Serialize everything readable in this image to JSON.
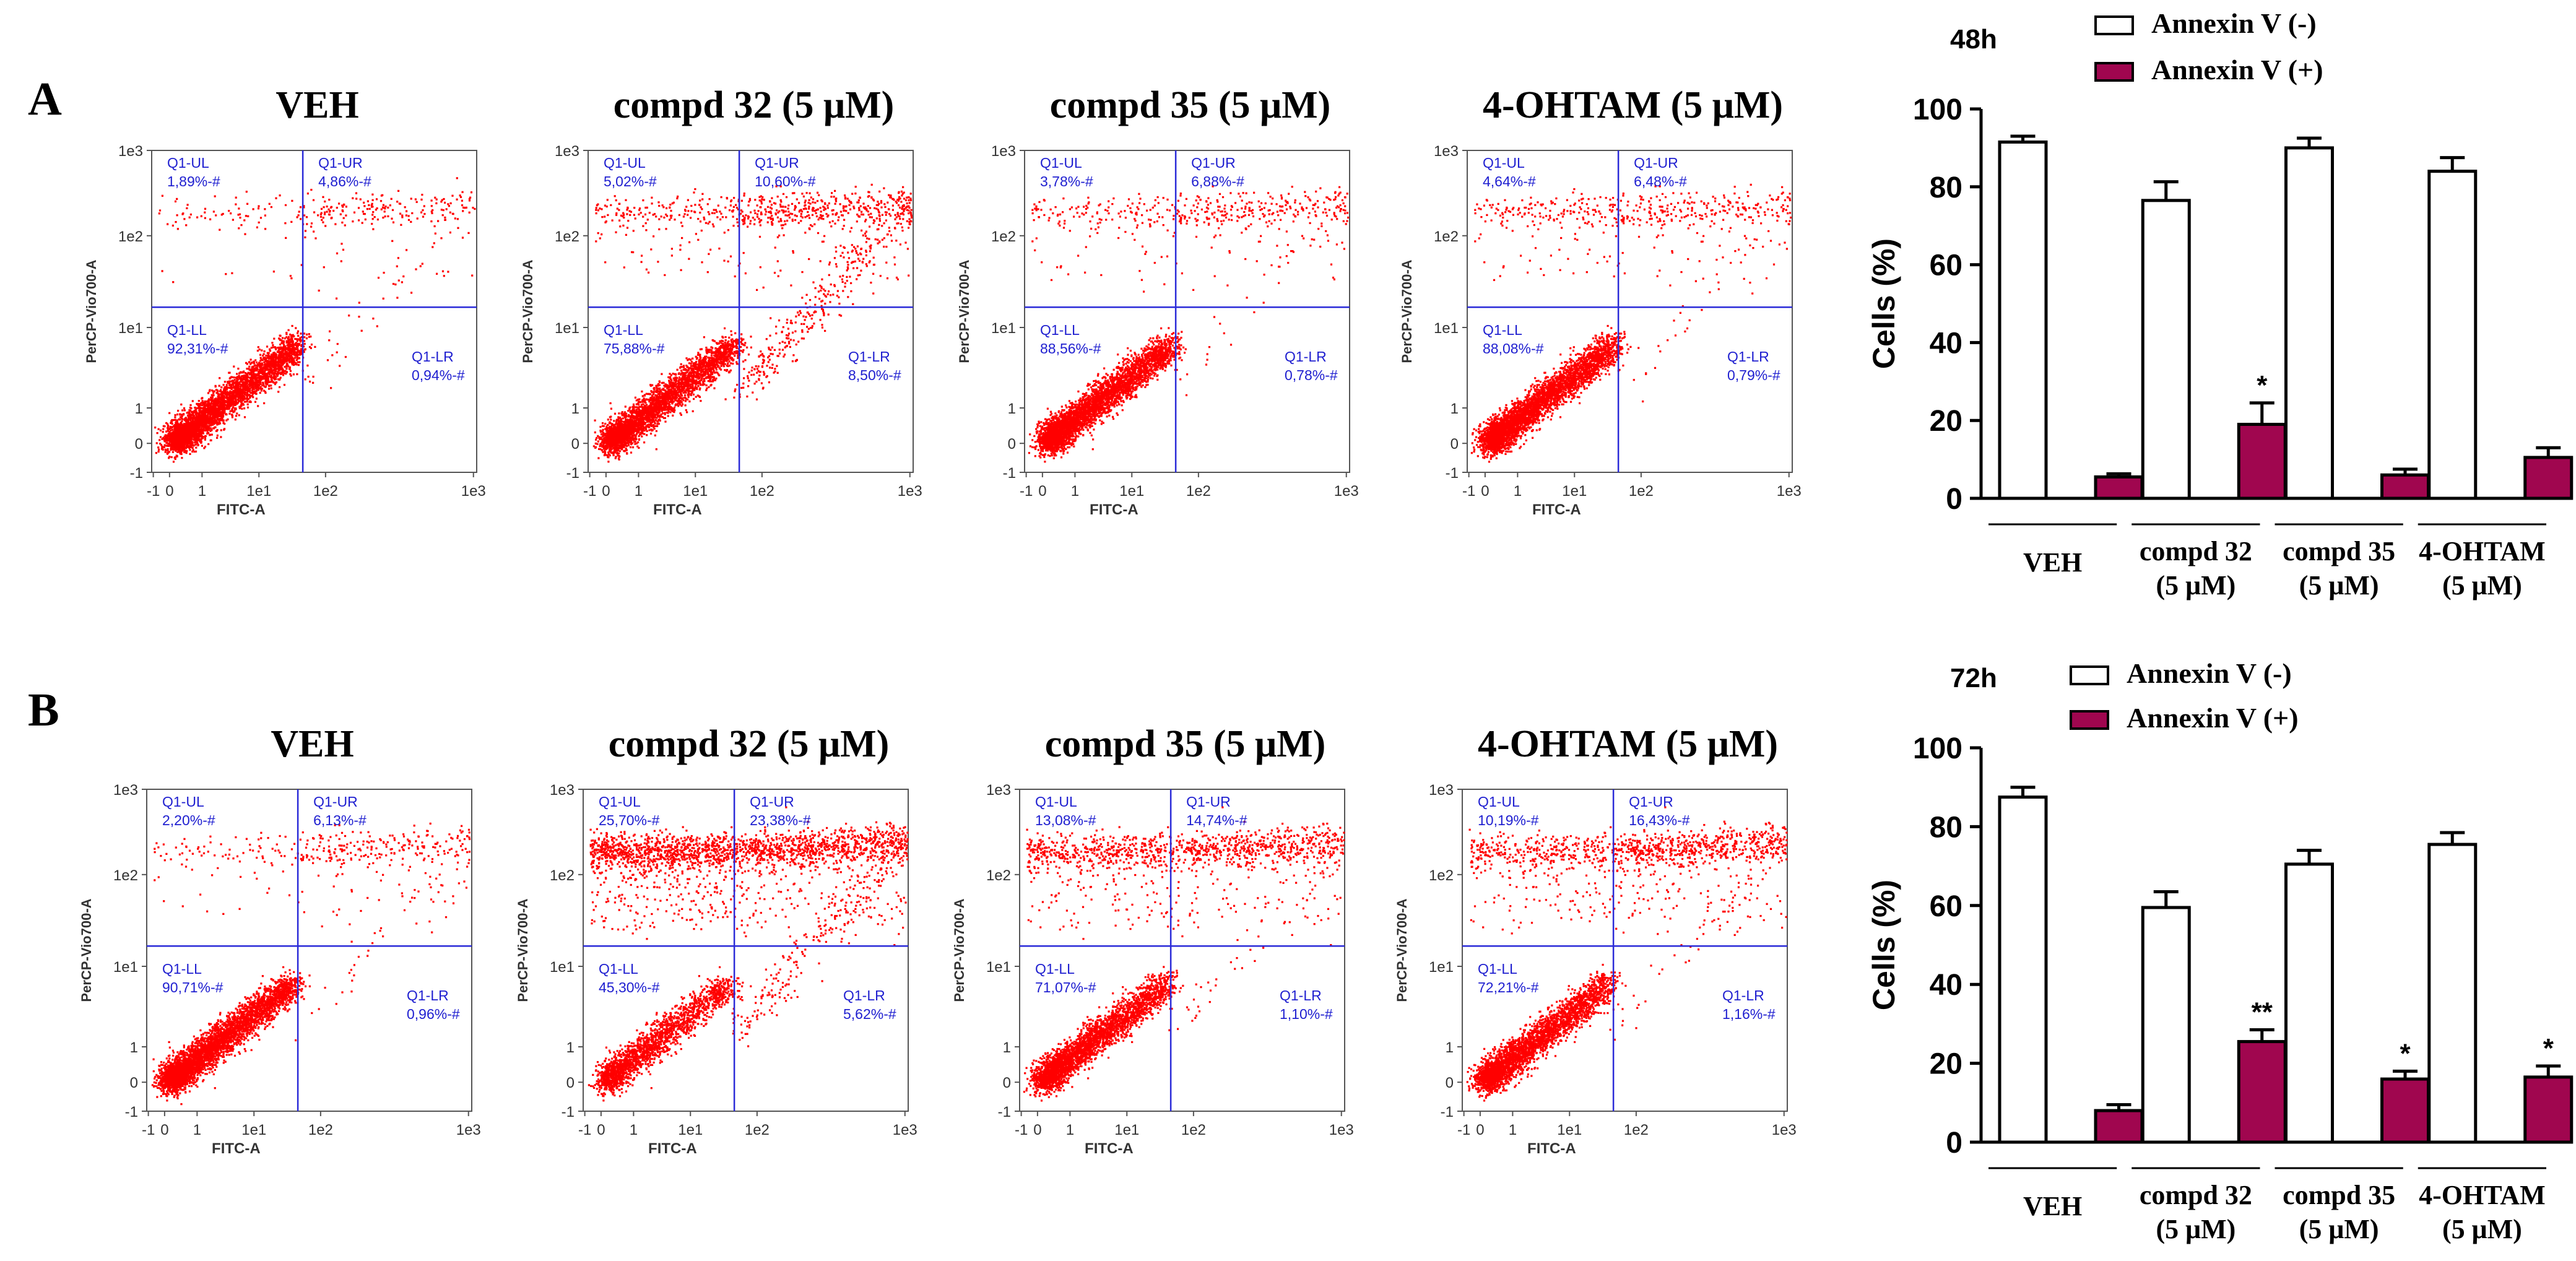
{
  "panels": [
    {
      "letter": "A",
      "time": "48h",
      "legend": [
        "Annexin V (-)",
        "Annexin V (+)"
      ],
      "flow_plots": [
        {
          "title": "VEH",
          "UL": "1,89%-#",
          "UR": "4,86%-#",
          "LL": "92,31%-#",
          "LR": "0,94%-#"
        },
        {
          "title": "compd 32 (5 μM)",
          "UL": "5,02%-#",
          "UR": "10,60%-#",
          "LL": "75,88%-#",
          "LR": "8,50%-#"
        },
        {
          "title": "compd 35 (5 μM)",
          "UL": "3,78%-#",
          "UR": "6,88%-#",
          "LL": "88,56%-#",
          "LR": "0,78%-#"
        },
        {
          "title": "4-OHTAM (5 μM)",
          "UL": "4,64%-#",
          "UR": "6,48%-#",
          "LL": "88,08%-#",
          "LR": "0,79%-#"
        }
      ]
    },
    {
      "letter": "B",
      "time": "72h",
      "legend": [
        "Annexin V (-)",
        "Annexin V (+)"
      ],
      "flow_plots": [
        {
          "title": "VEH",
          "UL": "2,20%-#",
          "UR": "6,13%-#",
          "LL": "90,71%-#",
          "LR": "0,96%-#"
        },
        {
          "title": "compd 32 (5 μM)",
          "UL": "25,70%-#",
          "UR": "23,38%-#",
          "LL": "45,30%-#",
          "LR": "5,62%-#"
        },
        {
          "title": "compd 35 (5 μM)",
          "UL": "13,08%-#",
          "UR": "14,74%-#",
          "LL": "71,07%-#",
          "LR": "1,10%-#"
        },
        {
          "title": "4-OHTAM (5 μM)",
          "UL": "10,19%-#",
          "UR": "16,43%-#",
          "LL": "72,21%-#",
          "LR": "1,16%-#"
        }
      ]
    }
  ],
  "flow_axes": {
    "xlabel": "FITC-A",
    "ylabel": "PerCP-Vio700-A",
    "x_ticks": [
      "-1",
      "0",
      "1",
      "1e1",
      "1e2",
      "1e3"
    ],
    "y_ticks": [
      "1e3",
      "1e2",
      "1e1",
      "1",
      "0",
      "-1"
    ],
    "quadrant_names": [
      "Q1-UL",
      "Q1-UR",
      "Q1-LL",
      "Q1-LR"
    ]
  },
  "chart_data": [
    {
      "type": "bar",
      "title": "48h",
      "categories": [
        "VEH",
        "compd 32\n(5 μM)",
        "compd 35\n(5 μM)",
        "4-OHTAM\n(5 μM)"
      ],
      "series": [
        {
          "name": "Annexin V (-)",
          "values": [
            91.5,
            76.5,
            90.0,
            84.0
          ],
          "errors": [
            1.5,
            4.8,
            2.5,
            3.5
          ],
          "color": "#ffffff"
        },
        {
          "name": "Annexin V (+)",
          "values": [
            5.5,
            19.0,
            6.0,
            10.5
          ],
          "errors": [
            0.8,
            5.5,
            1.5,
            2.5
          ],
          "color": "#a0064f"
        }
      ],
      "significance": [
        "",
        "*",
        "",
        ""
      ],
      "xlabel": "",
      "ylabel": "Cells (%)",
      "ylim": [
        0,
        100
      ],
      "yticks": [
        "0",
        "20",
        "40",
        "60",
        "80",
        "100"
      ]
    },
    {
      "type": "bar",
      "title": "72h",
      "categories": [
        "VEH",
        "compd 32\n(5 μM)",
        "compd 35\n(5 μM)",
        "4-OHTAM\n(5 μM)"
      ],
      "series": [
        {
          "name": "Annexin V (-)",
          "values": [
            87.5,
            59.5,
            70.5,
            75.5
          ],
          "errors": [
            2.5,
            4.0,
            3.5,
            3.0
          ],
          "color": "#ffffff"
        },
        {
          "name": "Annexin V (+)",
          "values": [
            8.0,
            25.5,
            16.0,
            16.5
          ],
          "errors": [
            1.5,
            3.0,
            2.0,
            2.8
          ],
          "color": "#a0064f"
        }
      ],
      "significance": [
        "",
        "**",
        "*",
        "*"
      ],
      "xlabel": "",
      "ylabel": "Cells (%)",
      "ylim": [
        0,
        100
      ],
      "yticks": [
        "0",
        "20",
        "40",
        "60",
        "80",
        "100"
      ]
    }
  ],
  "colors": {
    "dots": "#ff0000",
    "gate": "#2a2ad8",
    "label": "#1f1fd0",
    "bar_pos": "#a0064f",
    "ink": "#000000"
  }
}
